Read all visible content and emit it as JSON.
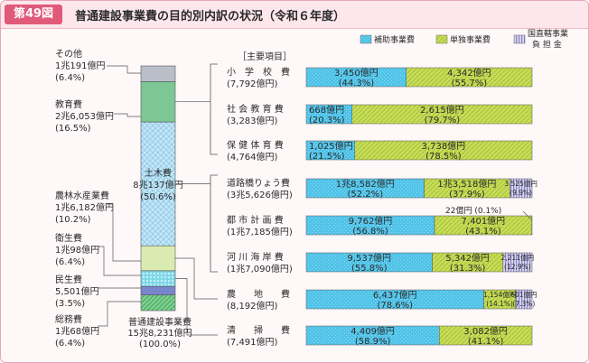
{
  "figure_number": "第49図",
  "title": "普通建設事業費の目的別内訳の状況（令和６年度）",
  "legend": [
    {
      "label": "補助事業費",
      "color": "#4fc3e8"
    },
    {
      "label": "単独事業費",
      "color": "#c8dc5a"
    },
    {
      "label": "国直轄事業負担金",
      "lines": [
        "国直轄事業",
        "負 担 金"
      ],
      "color": "#8b84c6"
    }
  ],
  "items_header": "［主要項目］",
  "chart_data": {
    "type": "bar",
    "stacked_total": {
      "total_label": [
        "普通建設事業費",
        "15兆8,231億円",
        "(100.0%)"
      ],
      "segments": [
        {
          "name": "総務費",
          "amount_label": "1兆68億円",
          "pct_label": "(6.4%)",
          "pct": 6.4,
          "color": "#7dcf8f"
        },
        {
          "name": "民生費",
          "amount_label": "5,501億円",
          "pct_label": "(3.5%)",
          "pct": 3.5,
          "color": "#7a86cc"
        },
        {
          "name": "衛生費",
          "amount_label": "1兆98億円",
          "pct_label": "(6.4%)",
          "pct": 6.4,
          "color": "#7fd8e8"
        },
        {
          "name": "農林水産業費",
          "amount_label": "1兆6,182億円",
          "pct_label": "(10.2%)",
          "pct": 10.2,
          "color": "#d9ebb0"
        },
        {
          "name": "土木費",
          "amount_label": "8兆137億円",
          "pct_label": "(50.6%)",
          "pct": 50.6,
          "color": "#c6e6f6"
        },
        {
          "name": "教育費",
          "amount_label": "2兆6,053億円",
          "pct_label": "(16.5%)",
          "pct": 16.5,
          "color": "#7cc794"
        },
        {
          "name": "その他",
          "amount_label": "1兆191億円",
          "pct_label": "(6.4%)",
          "pct": 6.4,
          "color": "#b9bec9"
        }
      ]
    },
    "categories": [
      "小学校費",
      "社会教育費",
      "保健体育費",
      "道路橋りょう費",
      "都市計画費",
      "河川海岸費",
      "農地費",
      "清掃費"
    ],
    "category_labels": [
      {
        "name": "小　学　校　費",
        "total": "(7,792億円)"
      },
      {
        "name": "社 会 教 育 費",
        "total": "(3,283億円)"
      },
      {
        "name": "保 健 体 育 費",
        "total": "(4,764億円)"
      },
      {
        "name": "道路橋りょう費",
        "total": "(3兆5,626億円)"
      },
      {
        "name": "都 市 計 画 費",
        "total": "(1兆7,185億円)"
      },
      {
        "name": "河 川 海 岸 費",
        "total": "(1兆7,090億円)"
      },
      {
        "name": "農　　地　　費",
        "total": "(8,192億円)"
      },
      {
        "name": "清　　掃　　費",
        "total": "(7,491億円)"
      }
    ],
    "series": [
      {
        "name": "補助事業費",
        "values": [
          44.3,
          20.3,
          21.5,
          52.2,
          56.8,
          55.8,
          78.6,
          58.9
        ],
        "amount_labels": [
          "3,450億円",
          "668億円",
          "1,025億円",
          "1兆8,582億円",
          "9,762億円",
          "9,537億円",
          "6,437億円",
          "4,409億円"
        ],
        "pct_labels": [
          "(44.3%)",
          "(20.3%)",
          "(21.5%)",
          "(52.2%)",
          "(56.8%)",
          "(55.8%)",
          "(78.6%)",
          "(58.9%)"
        ]
      },
      {
        "name": "単独事業費",
        "values": [
          55.7,
          79.7,
          78.5,
          37.9,
          43.1,
          31.3,
          14.1,
          41.1
        ],
        "amount_labels": [
          "4,342億円",
          "2,615億円",
          "3,738億円",
          "1兆3,518億円",
          "7,401億円",
          "5,342億円",
          "1,154億円",
          "3,082億円"
        ],
        "pct_labels": [
          "(55.7%)",
          "(79.7%)",
          "(78.5%)",
          "(37.9%)",
          "(43.1%)",
          "(31.3%)",
          "(14.1%)",
          "(41.1%)"
        ]
      },
      {
        "name": "国直轄事業負担金",
        "values": [
          0,
          0,
          0,
          9.9,
          0.1,
          12.9,
          7.3,
          0
        ],
        "amount_labels": [
          "",
          "",
          "",
          "3,525億円",
          "22億円",
          "2,211億円",
          "601億円",
          ""
        ],
        "pct_labels": [
          "",
          "",
          "",
          "(9.9%)",
          "(0.1%)",
          "(12.9%)",
          "(7.3%)",
          ""
        ]
      }
    ],
    "xlim": [
      0,
      100
    ]
  }
}
